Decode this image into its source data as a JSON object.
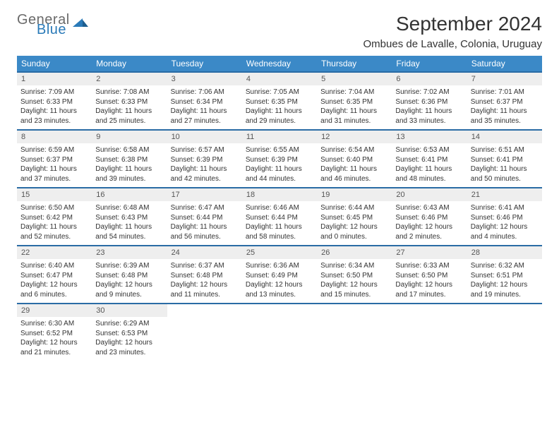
{
  "logo": {
    "text1": "General",
    "text2": "Blue"
  },
  "header": {
    "month_title": "September 2024",
    "location": "Ombues de Lavalle, Colonia, Uruguay"
  },
  "colors": {
    "header_bg": "#3B89C7",
    "header_text": "#ffffff",
    "week_border": "#2a6ca5",
    "daynum_bg": "#eeeeee",
    "body_bg": "#ffffff",
    "logo_gray": "#6a6a6a",
    "logo_blue": "#2a7ab8"
  },
  "typography": {
    "title_fontsize": 28,
    "location_fontsize": 15,
    "weekday_fontsize": 12,
    "daynum_fontsize": 11,
    "body_fontsize": 10
  },
  "weekdays": [
    "Sunday",
    "Monday",
    "Tuesday",
    "Wednesday",
    "Thursday",
    "Friday",
    "Saturday"
  ],
  "weeks": [
    [
      {
        "n": "1",
        "sunrise": "Sunrise: 7:09 AM",
        "sunset": "Sunset: 6:33 PM",
        "daylight": "Daylight: 11 hours and 23 minutes."
      },
      {
        "n": "2",
        "sunrise": "Sunrise: 7:08 AM",
        "sunset": "Sunset: 6:33 PM",
        "daylight": "Daylight: 11 hours and 25 minutes."
      },
      {
        "n": "3",
        "sunrise": "Sunrise: 7:06 AM",
        "sunset": "Sunset: 6:34 PM",
        "daylight": "Daylight: 11 hours and 27 minutes."
      },
      {
        "n": "4",
        "sunrise": "Sunrise: 7:05 AM",
        "sunset": "Sunset: 6:35 PM",
        "daylight": "Daylight: 11 hours and 29 minutes."
      },
      {
        "n": "5",
        "sunrise": "Sunrise: 7:04 AM",
        "sunset": "Sunset: 6:35 PM",
        "daylight": "Daylight: 11 hours and 31 minutes."
      },
      {
        "n": "6",
        "sunrise": "Sunrise: 7:02 AM",
        "sunset": "Sunset: 6:36 PM",
        "daylight": "Daylight: 11 hours and 33 minutes."
      },
      {
        "n": "7",
        "sunrise": "Sunrise: 7:01 AM",
        "sunset": "Sunset: 6:37 PM",
        "daylight": "Daylight: 11 hours and 35 minutes."
      }
    ],
    [
      {
        "n": "8",
        "sunrise": "Sunrise: 6:59 AM",
        "sunset": "Sunset: 6:37 PM",
        "daylight": "Daylight: 11 hours and 37 minutes."
      },
      {
        "n": "9",
        "sunrise": "Sunrise: 6:58 AM",
        "sunset": "Sunset: 6:38 PM",
        "daylight": "Daylight: 11 hours and 39 minutes."
      },
      {
        "n": "10",
        "sunrise": "Sunrise: 6:57 AM",
        "sunset": "Sunset: 6:39 PM",
        "daylight": "Daylight: 11 hours and 42 minutes."
      },
      {
        "n": "11",
        "sunrise": "Sunrise: 6:55 AM",
        "sunset": "Sunset: 6:39 PM",
        "daylight": "Daylight: 11 hours and 44 minutes."
      },
      {
        "n": "12",
        "sunrise": "Sunrise: 6:54 AM",
        "sunset": "Sunset: 6:40 PM",
        "daylight": "Daylight: 11 hours and 46 minutes."
      },
      {
        "n": "13",
        "sunrise": "Sunrise: 6:53 AM",
        "sunset": "Sunset: 6:41 PM",
        "daylight": "Daylight: 11 hours and 48 minutes."
      },
      {
        "n": "14",
        "sunrise": "Sunrise: 6:51 AM",
        "sunset": "Sunset: 6:41 PM",
        "daylight": "Daylight: 11 hours and 50 minutes."
      }
    ],
    [
      {
        "n": "15",
        "sunrise": "Sunrise: 6:50 AM",
        "sunset": "Sunset: 6:42 PM",
        "daylight": "Daylight: 11 hours and 52 minutes."
      },
      {
        "n": "16",
        "sunrise": "Sunrise: 6:48 AM",
        "sunset": "Sunset: 6:43 PM",
        "daylight": "Daylight: 11 hours and 54 minutes."
      },
      {
        "n": "17",
        "sunrise": "Sunrise: 6:47 AM",
        "sunset": "Sunset: 6:44 PM",
        "daylight": "Daylight: 11 hours and 56 minutes."
      },
      {
        "n": "18",
        "sunrise": "Sunrise: 6:46 AM",
        "sunset": "Sunset: 6:44 PM",
        "daylight": "Daylight: 11 hours and 58 minutes."
      },
      {
        "n": "19",
        "sunrise": "Sunrise: 6:44 AM",
        "sunset": "Sunset: 6:45 PM",
        "daylight": "Daylight: 12 hours and 0 minutes."
      },
      {
        "n": "20",
        "sunrise": "Sunrise: 6:43 AM",
        "sunset": "Sunset: 6:46 PM",
        "daylight": "Daylight: 12 hours and 2 minutes."
      },
      {
        "n": "21",
        "sunrise": "Sunrise: 6:41 AM",
        "sunset": "Sunset: 6:46 PM",
        "daylight": "Daylight: 12 hours and 4 minutes."
      }
    ],
    [
      {
        "n": "22",
        "sunrise": "Sunrise: 6:40 AM",
        "sunset": "Sunset: 6:47 PM",
        "daylight": "Daylight: 12 hours and 6 minutes."
      },
      {
        "n": "23",
        "sunrise": "Sunrise: 6:39 AM",
        "sunset": "Sunset: 6:48 PM",
        "daylight": "Daylight: 12 hours and 9 minutes."
      },
      {
        "n": "24",
        "sunrise": "Sunrise: 6:37 AM",
        "sunset": "Sunset: 6:48 PM",
        "daylight": "Daylight: 12 hours and 11 minutes."
      },
      {
        "n": "25",
        "sunrise": "Sunrise: 6:36 AM",
        "sunset": "Sunset: 6:49 PM",
        "daylight": "Daylight: 12 hours and 13 minutes."
      },
      {
        "n": "26",
        "sunrise": "Sunrise: 6:34 AM",
        "sunset": "Sunset: 6:50 PM",
        "daylight": "Daylight: 12 hours and 15 minutes."
      },
      {
        "n": "27",
        "sunrise": "Sunrise: 6:33 AM",
        "sunset": "Sunset: 6:50 PM",
        "daylight": "Daylight: 12 hours and 17 minutes."
      },
      {
        "n": "28",
        "sunrise": "Sunrise: 6:32 AM",
        "sunset": "Sunset: 6:51 PM",
        "daylight": "Daylight: 12 hours and 19 minutes."
      }
    ],
    [
      {
        "n": "29",
        "sunrise": "Sunrise: 6:30 AM",
        "sunset": "Sunset: 6:52 PM",
        "daylight": "Daylight: 12 hours and 21 minutes."
      },
      {
        "n": "30",
        "sunrise": "Sunrise: 6:29 AM",
        "sunset": "Sunset: 6:53 PM",
        "daylight": "Daylight: 12 hours and 23 minutes."
      },
      null,
      null,
      null,
      null,
      null
    ]
  ]
}
